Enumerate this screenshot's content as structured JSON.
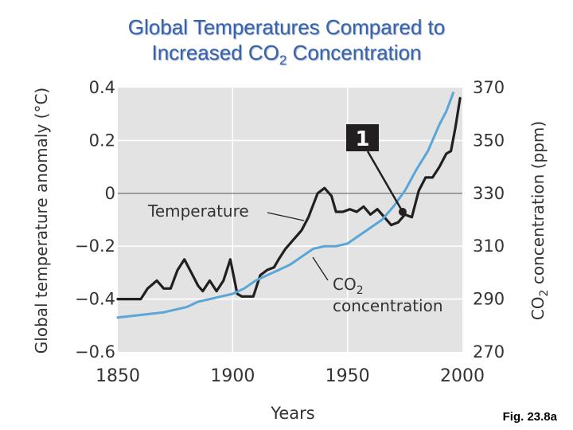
{
  "title_line1": "Global Temperatures Compared to",
  "title_line2_prefix": "Increased CO",
  "title_line2_sub": "2",
  "title_line2_suffix": " Concentration",
  "figure_label": "Fig. 23.8a",
  "colors": {
    "background": "#ffffff",
    "plot_area": "#e3e3e3",
    "grid": "#ffffff",
    "temperature": "#231f20",
    "co2": "#5aa6d6",
    "title": "#3a62a8",
    "marker_box": "#231f20"
  },
  "chart_data": {
    "type": "line",
    "xlabel": "Years",
    "ylabel_left": "Global temperature anomaly (°C)",
    "ylabel_right_prefix": "CO",
    "ylabel_right_sub": "2",
    "ylabel_right_suffix": " concentration (ppm)",
    "xlim": [
      1850,
      2000
    ],
    "ylim_left": [
      -0.6,
      0.4
    ],
    "ylim_right": [
      270,
      370
    ],
    "x_ticks": [
      "1850",
      "1900",
      "1950",
      "2000"
    ],
    "y_ticks_left": [
      "0.4",
      "0.2",
      "0",
      "−0.2",
      "−0.4",
      "−0.6"
    ],
    "y_ticks_right": [
      "370",
      "350",
      "330",
      "310",
      "290",
      "270"
    ],
    "x_tick_values": [
      1850,
      1900,
      1950,
      2000
    ],
    "y_tick_values_left": [
      0.4,
      0.2,
      0,
      -0.2,
      -0.4,
      -0.6
    ],
    "y_tick_values_right": [
      370,
      350,
      330,
      310,
      290,
      270
    ],
    "series": [
      {
        "name": "Temperature",
        "label": "Temperature",
        "axis": "left",
        "x": [
          1850,
          1855,
          1860,
          1863,
          1867,
          1870,
          1873,
          1876,
          1879,
          1882,
          1885,
          1887,
          1890,
          1893,
          1896,
          1899,
          1902,
          1904,
          1906,
          1909,
          1912,
          1915,
          1918,
          1920,
          1923,
          1927,
          1930,
          1933,
          1937,
          1940,
          1943,
          1945,
          1948,
          1951,
          1954,
          1957,
          1960,
          1963,
          1966,
          1969,
          1972,
          1975,
          1978,
          1981,
          1984,
          1987,
          1990,
          1993,
          1995,
          1997,
          1999
        ],
        "values": [
          -0.4,
          -0.4,
          -0.4,
          -0.36,
          -0.33,
          -0.36,
          -0.36,
          -0.29,
          -0.25,
          -0.3,
          -0.35,
          -0.37,
          -0.33,
          -0.37,
          -0.33,
          -0.25,
          -0.38,
          -0.39,
          -0.39,
          -0.39,
          -0.31,
          -0.29,
          -0.28,
          -0.25,
          -0.21,
          -0.17,
          -0.14,
          -0.09,
          0.0,
          0.02,
          -0.01,
          -0.07,
          -0.07,
          -0.06,
          -0.07,
          -0.05,
          -0.08,
          -0.06,
          -0.09,
          -0.12,
          -0.11,
          -0.08,
          -0.09,
          0.01,
          0.06,
          0.06,
          0.1,
          0.15,
          0.16,
          0.25,
          0.36
        ]
      },
      {
        "name": "CO2 concentration",
        "label_prefix": "CO",
        "label_sub": "2",
        "label_line2": "concentration",
        "axis": "right",
        "x": [
          1850,
          1860,
          1870,
          1880,
          1885,
          1890,
          1895,
          1900,
          1905,
          1910,
          1915,
          1920,
          1925,
          1930,
          1935,
          1940,
          1945,
          1950,
          1955,
          1960,
          1965,
          1970,
          1975,
          1980,
          1985,
          1990,
          1993,
          1996
        ],
        "values": [
          283,
          284,
          285,
          287,
          289,
          290,
          291,
          292,
          294,
          297,
          299,
          301,
          303,
          306,
          309,
          310,
          310,
          311,
          314,
          317,
          320,
          325,
          331,
          339,
          346,
          356,
          361,
          368
        ]
      }
    ],
    "annotations": [
      {
        "id": "marker-1",
        "label": "1",
        "x": 1974,
        "value": -0.07,
        "axis": "left"
      }
    ]
  }
}
